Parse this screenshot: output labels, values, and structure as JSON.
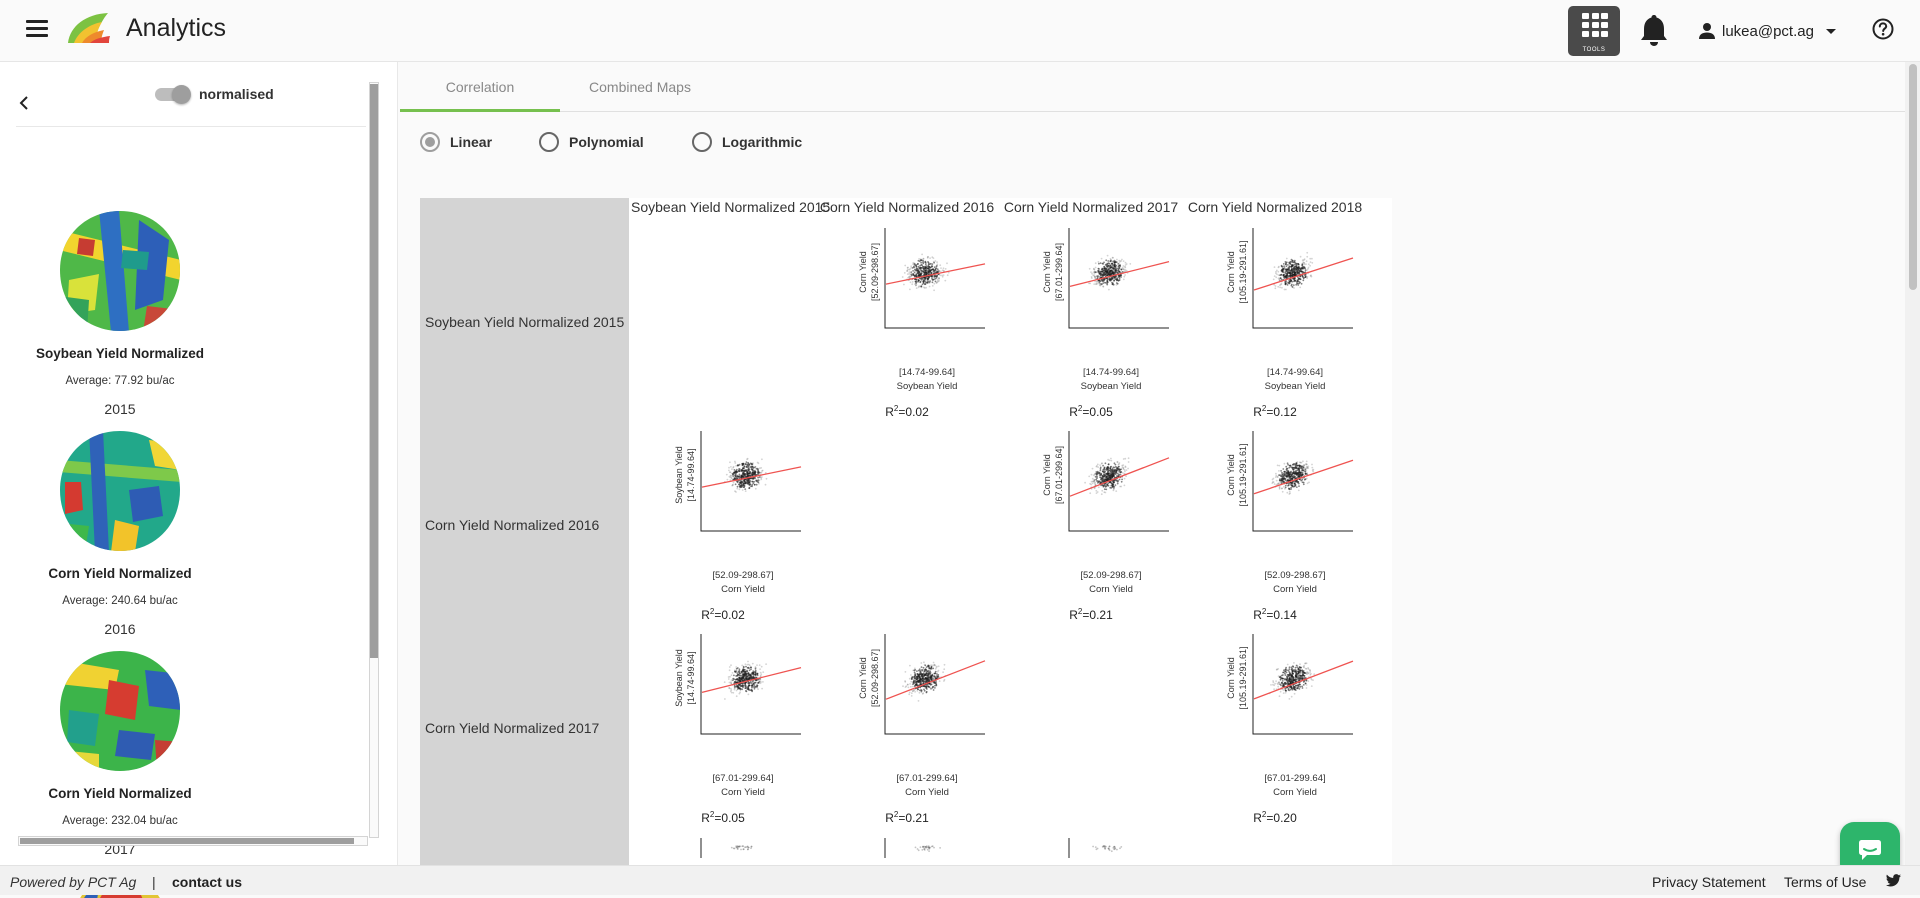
{
  "header": {
    "app_title": "Analytics",
    "tools_label": "TOOLS",
    "user_email": "lukea@pct.ag"
  },
  "left_panel": {
    "toggle_label": "normalised",
    "toggle_on": true,
    "maps": [
      {
        "name": "Soybean Yield Normalized",
        "average": "Average: 77.92 bu/ac",
        "year": "2015"
      },
      {
        "name": "Corn Yield Normalized",
        "average": "Average: 240.64 bu/ac",
        "year": "2016"
      },
      {
        "name": "Corn Yield Normalized",
        "average": "Average: 232.04 bu/ac",
        "year": "2017"
      }
    ]
  },
  "tabs": [
    {
      "label": "Correlation",
      "active": true
    },
    {
      "label": "Combined Maps",
      "active": false
    }
  ],
  "regression_options": [
    {
      "label": "Linear",
      "selected": true
    },
    {
      "label": "Polynomial",
      "selected": false
    },
    {
      "label": "Logarithmic",
      "selected": false
    }
  ],
  "matrix": {
    "columns": [
      "Soybean Yield Normalized 2015",
      "Corn Yield Normalized 2016",
      "Corn Yield Normalized 2017",
      "Corn Yield Normalized 2018"
    ],
    "rows": [
      "Soybean Yield Normalized 2015",
      "Corn Yield Normalized 2016",
      "Corn Yield Normalized 2017"
    ],
    "cells": [
      {
        "row": 0,
        "col": 1,
        "y_name": "Corn Yield",
        "y_range": "[52.09-298.67]",
        "x_range": "[14.74-99.64]",
        "x_name": "Soybean Yield",
        "r2": "0.02"
      },
      {
        "row": 0,
        "col": 2,
        "y_name": "Corn Yield",
        "y_range": "[67.01-299.64]",
        "x_range": "[14.74-99.64]",
        "x_name": "Soybean Yield",
        "r2": "0.05"
      },
      {
        "row": 0,
        "col": 3,
        "y_name": "Corn Yield",
        "y_range": "[105.19-291.61]",
        "x_range": "[14.74-99.64]",
        "x_name": "Soybean Yield",
        "r2": "0.12"
      },
      {
        "row": 1,
        "col": 0,
        "y_name": "Soybean Yield",
        "y_range": "[14.74-99.64]",
        "x_range": "[52.09-298.67]",
        "x_name": "Corn Yield",
        "r2": "0.02"
      },
      {
        "row": 1,
        "col": 2,
        "y_name": "Corn Yield",
        "y_range": "[67.01-299.64]",
        "x_range": "[52.09-298.67]",
        "x_name": "Corn Yield",
        "r2": "0.21"
      },
      {
        "row": 1,
        "col": 3,
        "y_name": "Corn Yield",
        "y_range": "[105.19-291.61]",
        "x_range": "[52.09-298.67]",
        "x_name": "Corn Yield",
        "r2": "0.14"
      },
      {
        "row": 2,
        "col": 0,
        "y_name": "Soybean Yield",
        "y_range": "[14.74-99.64]",
        "x_range": "[67.01-299.64]",
        "x_name": "Corn Yield",
        "r2": "0.05"
      },
      {
        "row": 2,
        "col": 1,
        "y_name": "Corn Yield",
        "y_range": "[52.09-298.67]",
        "x_range": "[67.01-299.64]",
        "x_name": "Corn Yield",
        "r2": "0.21"
      },
      {
        "row": 2,
        "col": 3,
        "y_name": "Corn Yield",
        "y_range": "[105.19-291.61]",
        "x_range": "[67.01-299.64]",
        "x_name": "Corn Yield",
        "r2": "0.20"
      }
    ]
  },
  "footer": {
    "powered_by": "Powered by PCT Ag",
    "separator": "|",
    "contact": "contact us",
    "privacy": "Privacy Statement",
    "terms": "Terms of Use"
  },
  "colors": {
    "accent_green": "#76c04e",
    "chat_green": "#2db56b",
    "regression_line": "#ef5350",
    "row_header_bg": "#d4d4d4"
  }
}
